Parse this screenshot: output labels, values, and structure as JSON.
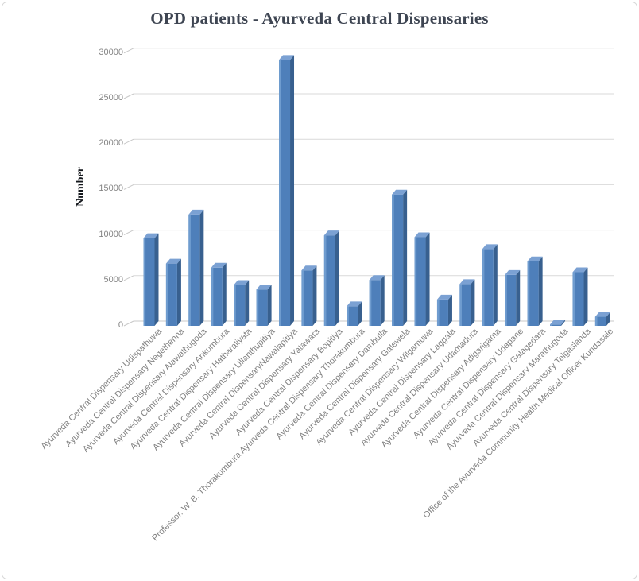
{
  "chart_data": {
    "type": "bar",
    "title": "OPD patients - Ayurveda Central Dispensaries",
    "xlabel": "",
    "ylabel": "Number",
    "ylim": [
      0,
      30000
    ],
    "yticks": [
      0,
      5000,
      10000,
      15000,
      20000,
      25000,
      30000
    ],
    "grid": true,
    "legend": false,
    "style": "excel-3d-column",
    "colors": {
      "bar_front": "#4e7fba",
      "bar_front_highlight": "#6f9ccf",
      "bar_top": "#7ba1d3",
      "bar_side": "#38608f",
      "gridline": "#d9d9d9",
      "axis_line": "#c8c8c8",
      "title_text": "#3e4552",
      "tick_text": "#848484",
      "frame_border": "#d7d7d7"
    },
    "categories": [
      "Ayurveda Central Dispensary Udispathuwa",
      "Ayurveda Central Dispensary Negethenna",
      "Ayurveda Central Dispensary Alawathugoda",
      "Ayurveda Central Dispensary Ankumbura",
      "Ayurveda Central Dispensary Hatharaliyata",
      "Ayurveda Central Dispensary Ullanthupitiya",
      "Ayurveda Central DispensaryNawalapitiya",
      "Ayurveda Central Dispensary Yatawara",
      "Ayurveda Central Dispensary Bopitiya",
      "Professor. W. B. Thorakumbura Ayurveda Central Dispensary Thorakumbura",
      "Ayurveda Central Dispensary Dambulla",
      "Ayurveda Central Dispensary Galewela",
      "Ayurveda Central Dispensary Wilgamuwa",
      "Ayurveda Central Dispensary Laggala",
      "Ayurveda Central Dispensary Udamadura",
      "Ayurveda Central Dispensary Adigarigama",
      "Ayurveda Central Dispensary Udapane",
      "Ayurveda Central Dispensary Galagedara",
      "Ayurveda Central Dispensary Marathugoda",
      "Ayurveda Central Dispensary Telgaslanda",
      "Office of the Ayurveda Community Health Medical Officer Kundasale"
    ],
    "values": [
      9650,
      6850,
      12250,
      6400,
      4500,
      4000,
      29250,
      6100,
      9950,
      2150,
      5050,
      14450,
      9750,
      2900,
      4600,
      8450,
      5600,
      7100,
      150,
      5900,
      1000
    ]
  }
}
